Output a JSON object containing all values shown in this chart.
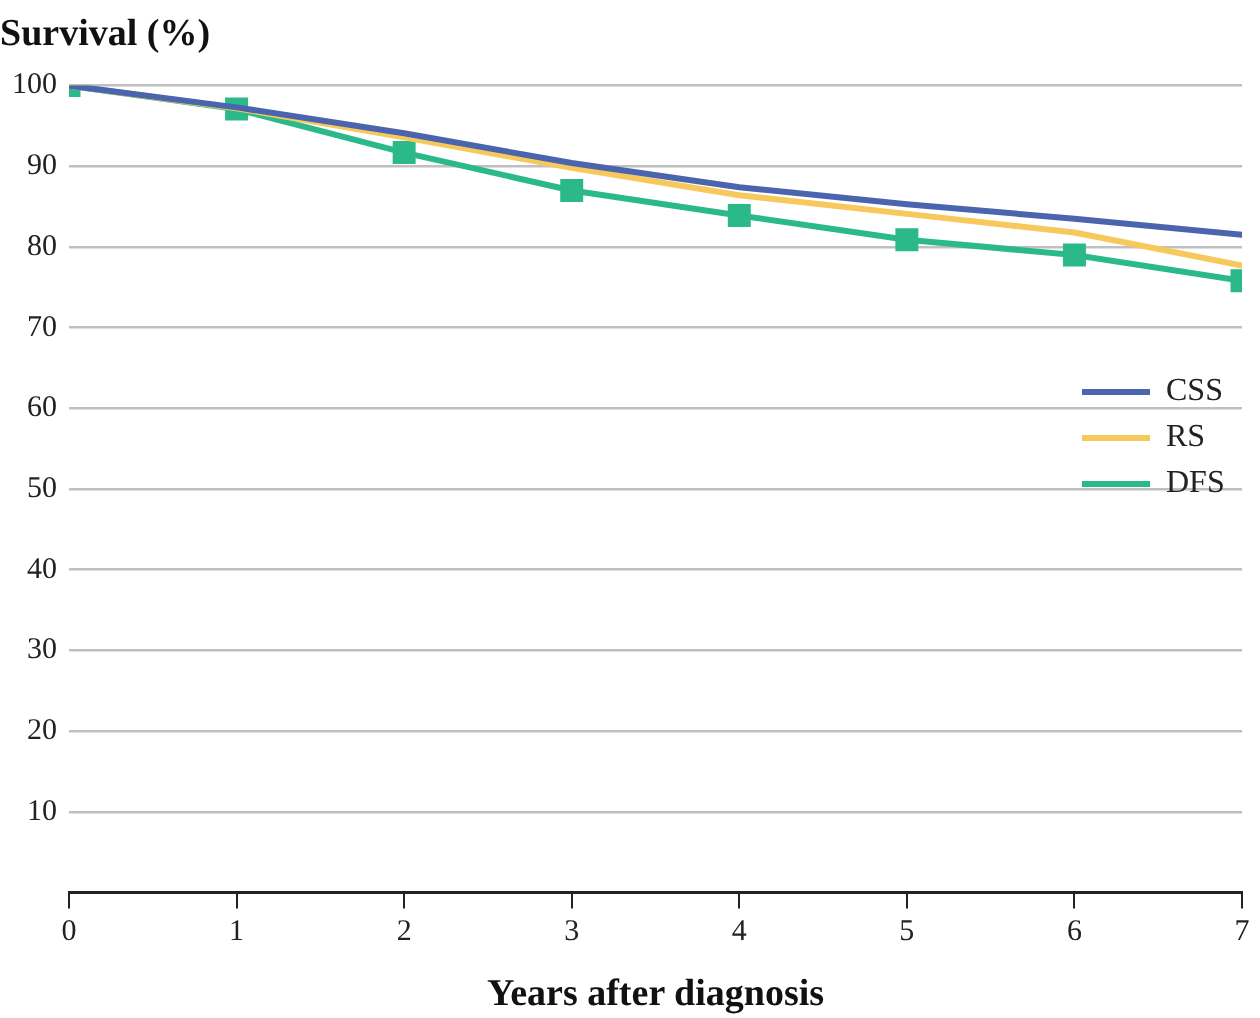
{
  "chart_data": {
    "type": "line",
    "title": "Survival (%)",
    "xlabel": "Years after diagnosis",
    "x": [
      0,
      1,
      2,
      3,
      4,
      5,
      6,
      7
    ],
    "series": [
      {
        "name": "CSS",
        "color": "#4a65ad",
        "marker": "none",
        "values": [
          100,
          97.3,
          94.1,
          90.4,
          87.4,
          85.3,
          83.5,
          81.5
        ]
      },
      {
        "name": "RS",
        "color": "#f7c95c",
        "marker": "none",
        "values": [
          100,
          97.2,
          93.6,
          89.8,
          86.4,
          84.1,
          81.8,
          77.7
        ]
      },
      {
        "name": "DFS",
        "color": "#2bb98a",
        "marker": "square",
        "values": [
          100,
          97.1,
          91.7,
          87.0,
          83.9,
          80.9,
          79.0,
          75.8
        ]
      }
    ],
    "xlim": [
      0,
      7
    ],
    "xticks": [
      0,
      1,
      2,
      3,
      4,
      5,
      6,
      7
    ],
    "ylim": [
      0,
      100
    ],
    "yticks": [
      10,
      20,
      30,
      40,
      50,
      60,
      70,
      80,
      90,
      100
    ],
    "grid": "y",
    "legend": "right",
    "line_style": "solid"
  }
}
